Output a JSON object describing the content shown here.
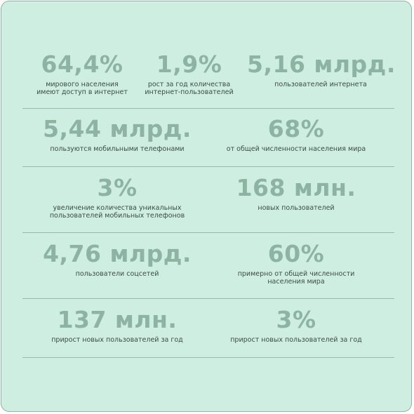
{
  "stats": [
    {
      "value": "64,4%",
      "caption": "мирового населения\nимеют доступ в интернет"
    },
    {
      "value": "1,9%",
      "caption": "рост за год количества\nинтернет-пользователей"
    },
    {
      "value": "5,16 млрд.",
      "caption": "пользователей интернета"
    },
    {
      "value": "5,44 млрд.",
      "caption": "пользуются мобильными телефонами"
    },
    {
      "value": "68%",
      "caption": "от общей численности населения мира"
    },
    {
      "value": "3%",
      "caption": "увеличение количества уникальных\nпользователей мобильных телефонов"
    },
    {
      "value": "168 млн.",
      "caption": "новых пользователей"
    },
    {
      "value": "4,76 млрд.",
      "caption": "пользователи соцсетей"
    },
    {
      "value": "60%",
      "caption": "примерно от общей численности\nнаселения мира"
    },
    {
      "value": "137 млн.",
      "caption": "прирост новых пользователей за год"
    },
    {
      "value": "3%",
      "caption": "прирост новых пользователей за год"
    }
  ],
  "colors": {
    "background": "#cdeee0",
    "accent": "#8db4a2",
    "text": "#3f4a45",
    "divider": "#98baa9"
  }
}
